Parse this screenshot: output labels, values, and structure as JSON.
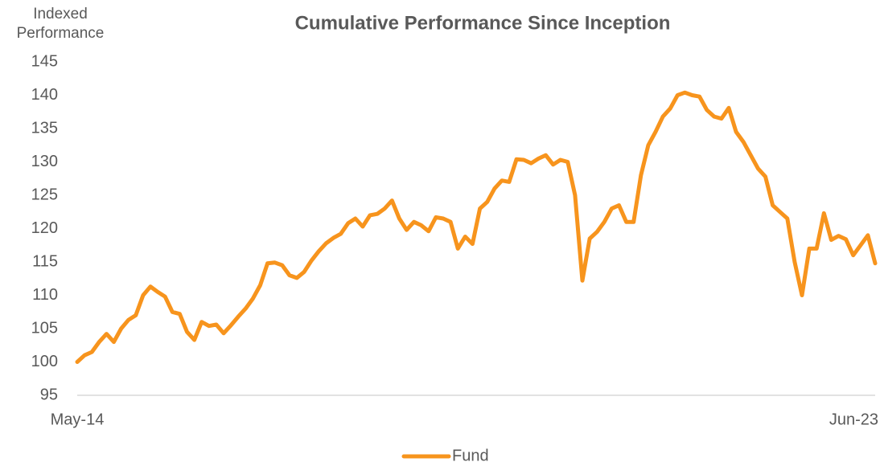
{
  "chart_data": {
    "type": "line",
    "title": "Cumulative Performance Since Inception",
    "y_label": "Indexed Performance",
    "categories": [
      "May-14",
      null,
      null,
      null,
      null,
      null,
      null,
      null,
      null,
      null,
      null,
      null,
      null,
      null,
      null,
      null,
      null,
      null,
      null,
      null,
      null,
      null,
      null,
      null,
      null,
      null,
      null,
      null,
      null,
      null,
      null,
      null,
      null,
      null,
      null,
      null,
      null,
      null,
      null,
      null,
      null,
      null,
      null,
      null,
      null,
      null,
      null,
      null,
      null,
      null,
      null,
      null,
      null,
      null,
      null,
      null,
      null,
      null,
      null,
      null,
      null,
      null,
      null,
      null,
      null,
      null,
      null,
      null,
      null,
      null,
      null,
      null,
      null,
      null,
      null,
      null,
      null,
      null,
      null,
      null,
      null,
      null,
      null,
      null,
      null,
      null,
      null,
      null,
      null,
      null,
      null,
      null,
      null,
      null,
      null,
      null,
      null,
      null,
      null,
      null,
      null,
      null,
      null,
      null,
      null,
      null,
      null,
      null,
      null,
      "Jun-23"
    ],
    "series": [
      {
        "name": "Fund",
        "color": "#f7941d",
        "values": [
          100,
          101,
          101.5,
          103,
          104.2,
          103,
          105,
          106.3,
          107,
          110,
          111.3,
          110.5,
          109.8,
          107.5,
          107.2,
          104.5,
          103.3,
          106,
          105.4,
          105.6,
          104.3,
          105.5,
          106.8,
          108,
          109.5,
          111.5,
          114.8,
          114.9,
          114.5,
          113,
          112.6,
          113.5,
          115.2,
          116.6,
          117.8,
          118.6,
          119.2,
          120.8,
          121.5,
          120.3,
          122,
          122.2,
          123,
          124.2,
          121.5,
          119.8,
          121,
          120.5,
          119.6,
          121.7,
          121.5,
          121,
          117,
          118.8,
          117.7,
          123,
          124,
          126,
          127.2,
          127,
          130.4,
          130.3,
          129.8,
          130.5,
          131,
          129.6,
          130.3,
          130,
          125,
          112.2,
          118.5,
          119.5,
          121,
          123,
          123.5,
          121,
          121,
          128,
          132.5,
          134.5,
          136.8,
          138,
          140,
          140.4,
          140,
          139.8,
          137.8,
          136.8,
          136.5,
          138.1,
          134.5,
          133,
          131,
          129,
          127.8,
          123.5,
          122.5,
          121.5,
          115,
          110,
          117,
          117,
          122.3,
          118.3,
          118.9,
          118.4,
          116,
          117.5,
          119,
          114.8
        ]
      }
    ],
    "ylim": [
      95,
      145
    ],
    "yticks": [
      95,
      100,
      105,
      110,
      115,
      120,
      125,
      130,
      135,
      140,
      145
    ],
    "grid": false,
    "legend": "bottom"
  }
}
